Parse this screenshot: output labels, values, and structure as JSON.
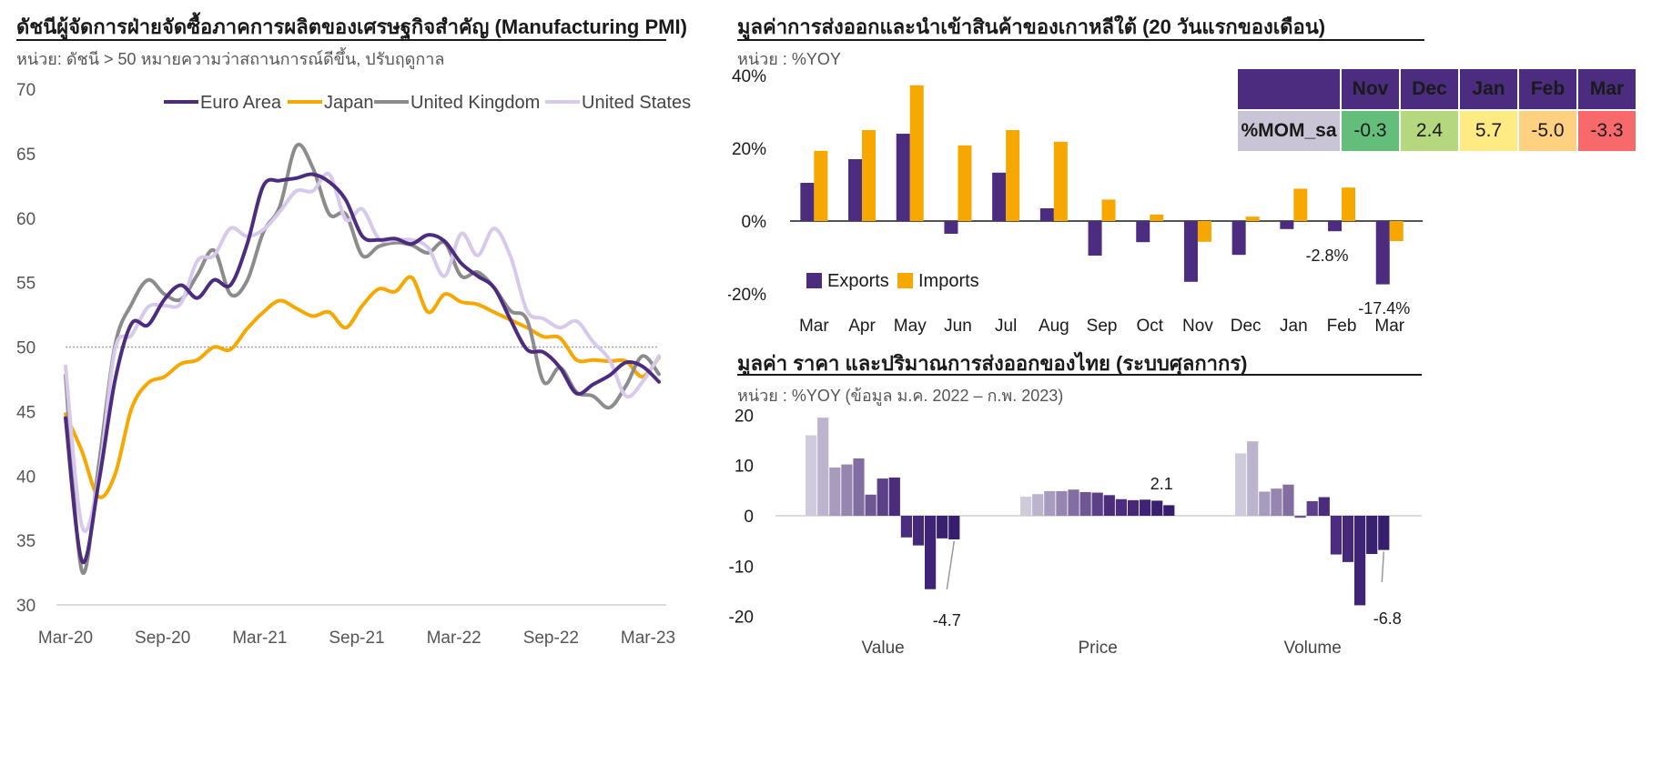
{
  "left_panel": {
    "title": "ดัชนีผู้จัดการฝ่ายจัดซื้อภาคการผลิตของเศรษฐกิจสำคัญ  (Manufacturing PMI)",
    "unit": "หน่วย: ดัชนี > 50 หมายความว่าสถานการณ์ดีขึ้น, ปรับฤดูกาล"
  },
  "right_top": {
    "title": "มูลค่าการส่งออกและนำเข้าสินค้าของเกาหลีใต้  (20 วันแรกของเดือน)",
    "unit": "หน่วย : %YOY"
  },
  "right_bottom": {
    "title": "มูลค่า ราคา และปริมาณการส่งออกของไทย  (ระบบศุลกากร)",
    "unit": "หน่วย : %YOY (ข้อมูล ม.ค. 2022 – ก.พ. 2023)"
  },
  "mom_table": {
    "row_label": "%MOM_sa",
    "headers": [
      "Nov",
      "Dec",
      "Jan",
      "Feb",
      "Mar"
    ],
    "values": [
      "-0.3",
      "2.4",
      "5.7",
      "-5.0",
      "-3.3"
    ],
    "colors": [
      "#63be7b",
      "#b5d77e",
      "#ffeb84",
      "#fdd17f",
      "#f8696b"
    ]
  },
  "chart_data": [
    {
      "type": "line",
      "ylim": [
        30,
        70
      ],
      "yticks": [
        "30",
        "35",
        "40",
        "45",
        "50",
        "55",
        "60",
        "65",
        "70"
      ],
      "xticks": [
        "Mar-20",
        "Sep-20",
        "Mar-21",
        "Sep-21",
        "Mar-22",
        "Sep-22",
        "Mar-23"
      ],
      "reference_line": 50,
      "legend_position": "top",
      "series": [
        {
          "name": "Euro Area",
          "color": "#4b2c7e",
          "values": [
            44.5,
            33.4,
            39.4,
            47.4,
            51.8,
            51.7,
            53.7,
            54.8,
            53.8,
            55.2,
            54.8,
            57.9,
            62.5,
            62.9,
            63.1,
            63.4,
            62.8,
            61.4,
            58.6,
            58.3,
            58.4,
            58.0,
            58.7,
            58.2,
            56.5,
            55.5,
            54.6,
            52.1,
            49.8,
            49.6,
            48.4,
            46.4,
            47.1,
            47.8,
            48.8,
            48.5,
            47.3
          ]
        },
        {
          "name": "Japan",
          "color": "#f7a800",
          "values": [
            44.8,
            41.9,
            38.4,
            40.1,
            45.2,
            47.2,
            47.7,
            48.7,
            49.0,
            50.0,
            49.8,
            51.4,
            52.7,
            53.6,
            53.0,
            52.4,
            52.7,
            51.5,
            53.2,
            54.5,
            54.3,
            55.4,
            52.7,
            54.1,
            53.5,
            53.3,
            52.7,
            52.1,
            51.5,
            50.8,
            50.7,
            49.0,
            49.0,
            48.9,
            48.9,
            47.7,
            49.2
          ]
        },
        {
          "name": "United Kingdom",
          "color": "#8c8c8c",
          "values": [
            47.8,
            32.6,
            40.7,
            50.1,
            53.3,
            55.2,
            54.1,
            53.7,
            55.6,
            57.5,
            54.1,
            55.1,
            58.9,
            60.9,
            65.6,
            63.9,
            60.3,
            60.3,
            57.1,
            57.8,
            58.1,
            57.9,
            57.3,
            58.1,
            55.5,
            55.8,
            54.6,
            52.8,
            52.1,
            47.3,
            48.4,
            46.5,
            46.2,
            45.3,
            47.0,
            49.3,
            47.9
          ]
        },
        {
          "name": "United States",
          "color": "#d7c9eb",
          "values": [
            48.5,
            36.1,
            39.8,
            49.8,
            50.9,
            53.1,
            53.2,
            53.4,
            56.7,
            57.1,
            59.2,
            58.6,
            59.1,
            60.5,
            62.1,
            62.1,
            63.4,
            59.9,
            60.7,
            58.4,
            58.3,
            58.3,
            57.7,
            55.5,
            58.8,
            57.1,
            59.2,
            57.0,
            52.8,
            52.2,
            51.5,
            52.0,
            50.4,
            49.0,
            46.2,
            47.3,
            49.3
          ]
        }
      ]
    },
    {
      "type": "bar",
      "categories": [
        "Mar",
        "Apr",
        "May",
        "Jun",
        "Jul",
        "Aug",
        "Sep",
        "Oct",
        "Nov",
        "Dec",
        "Jan",
        "Feb",
        "Mar"
      ],
      "ylim": [
        -20,
        40
      ],
      "yticks": [
        "-20%",
        "0%",
        "20%",
        "40%"
      ],
      "legend_position": "bottom-left",
      "series": [
        {
          "name": "Exports",
          "color": "#4b2c7e",
          "values": [
            10.5,
            17.0,
            24.0,
            -3.5,
            13.3,
            3.5,
            -9.5,
            -5.8,
            -16.7,
            -9.3,
            -2.2,
            -2.8,
            -17.4
          ]
        },
        {
          "name": "Imports",
          "color": "#f7a800",
          "values": [
            19.3,
            25.0,
            37.3,
            20.8,
            25.0,
            21.8,
            5.9,
            1.8,
            -5.7,
            1.2,
            8.9,
            9.2,
            -5.5
          ]
        }
      ],
      "data_labels": [
        "-2.8%",
        "-17.4%"
      ]
    },
    {
      "type": "bar",
      "categories": [
        "Value",
        "Price",
        "Volume"
      ],
      "ylim": [
        -20,
        20
      ],
      "yticks": [
        "-20",
        "-10",
        "0",
        "10",
        "20"
      ],
      "groups": [
        {
          "name": "Value",
          "values": [
            16.0,
            19.5,
            9.6,
            10.2,
            11.4,
            4.2,
            7.4,
            7.6,
            -4.3,
            -5.9,
            -14.6,
            -4.5,
            -4.7
          ],
          "callout": "-4.7"
        },
        {
          "name": "Price",
          "values": [
            3.8,
            4.3,
            4.9,
            4.9,
            5.2,
            4.7,
            4.6,
            4.1,
            3.3,
            3.1,
            3.2,
            3.0,
            2.1
          ],
          "callout": "2.1"
        },
        {
          "name": "Volume",
          "values": [
            12.4,
            14.8,
            4.8,
            5.4,
            6.2,
            -0.4,
            2.9,
            3.7,
            -7.7,
            -9.2,
            -17.8,
            -7.6,
            -6.8
          ],
          "callout": "-6.8"
        }
      ],
      "colors": [
        "#d0cbdc",
        "#bcb4cd",
        "#a89cbe",
        "#9585af",
        "#826ea1",
        "#6f5794",
        "#5c4188",
        "#4a2b7c",
        "#4b2c7e",
        "#45287a",
        "#3f2475",
        "#3a2170",
        "#351e6b"
      ]
    }
  ]
}
